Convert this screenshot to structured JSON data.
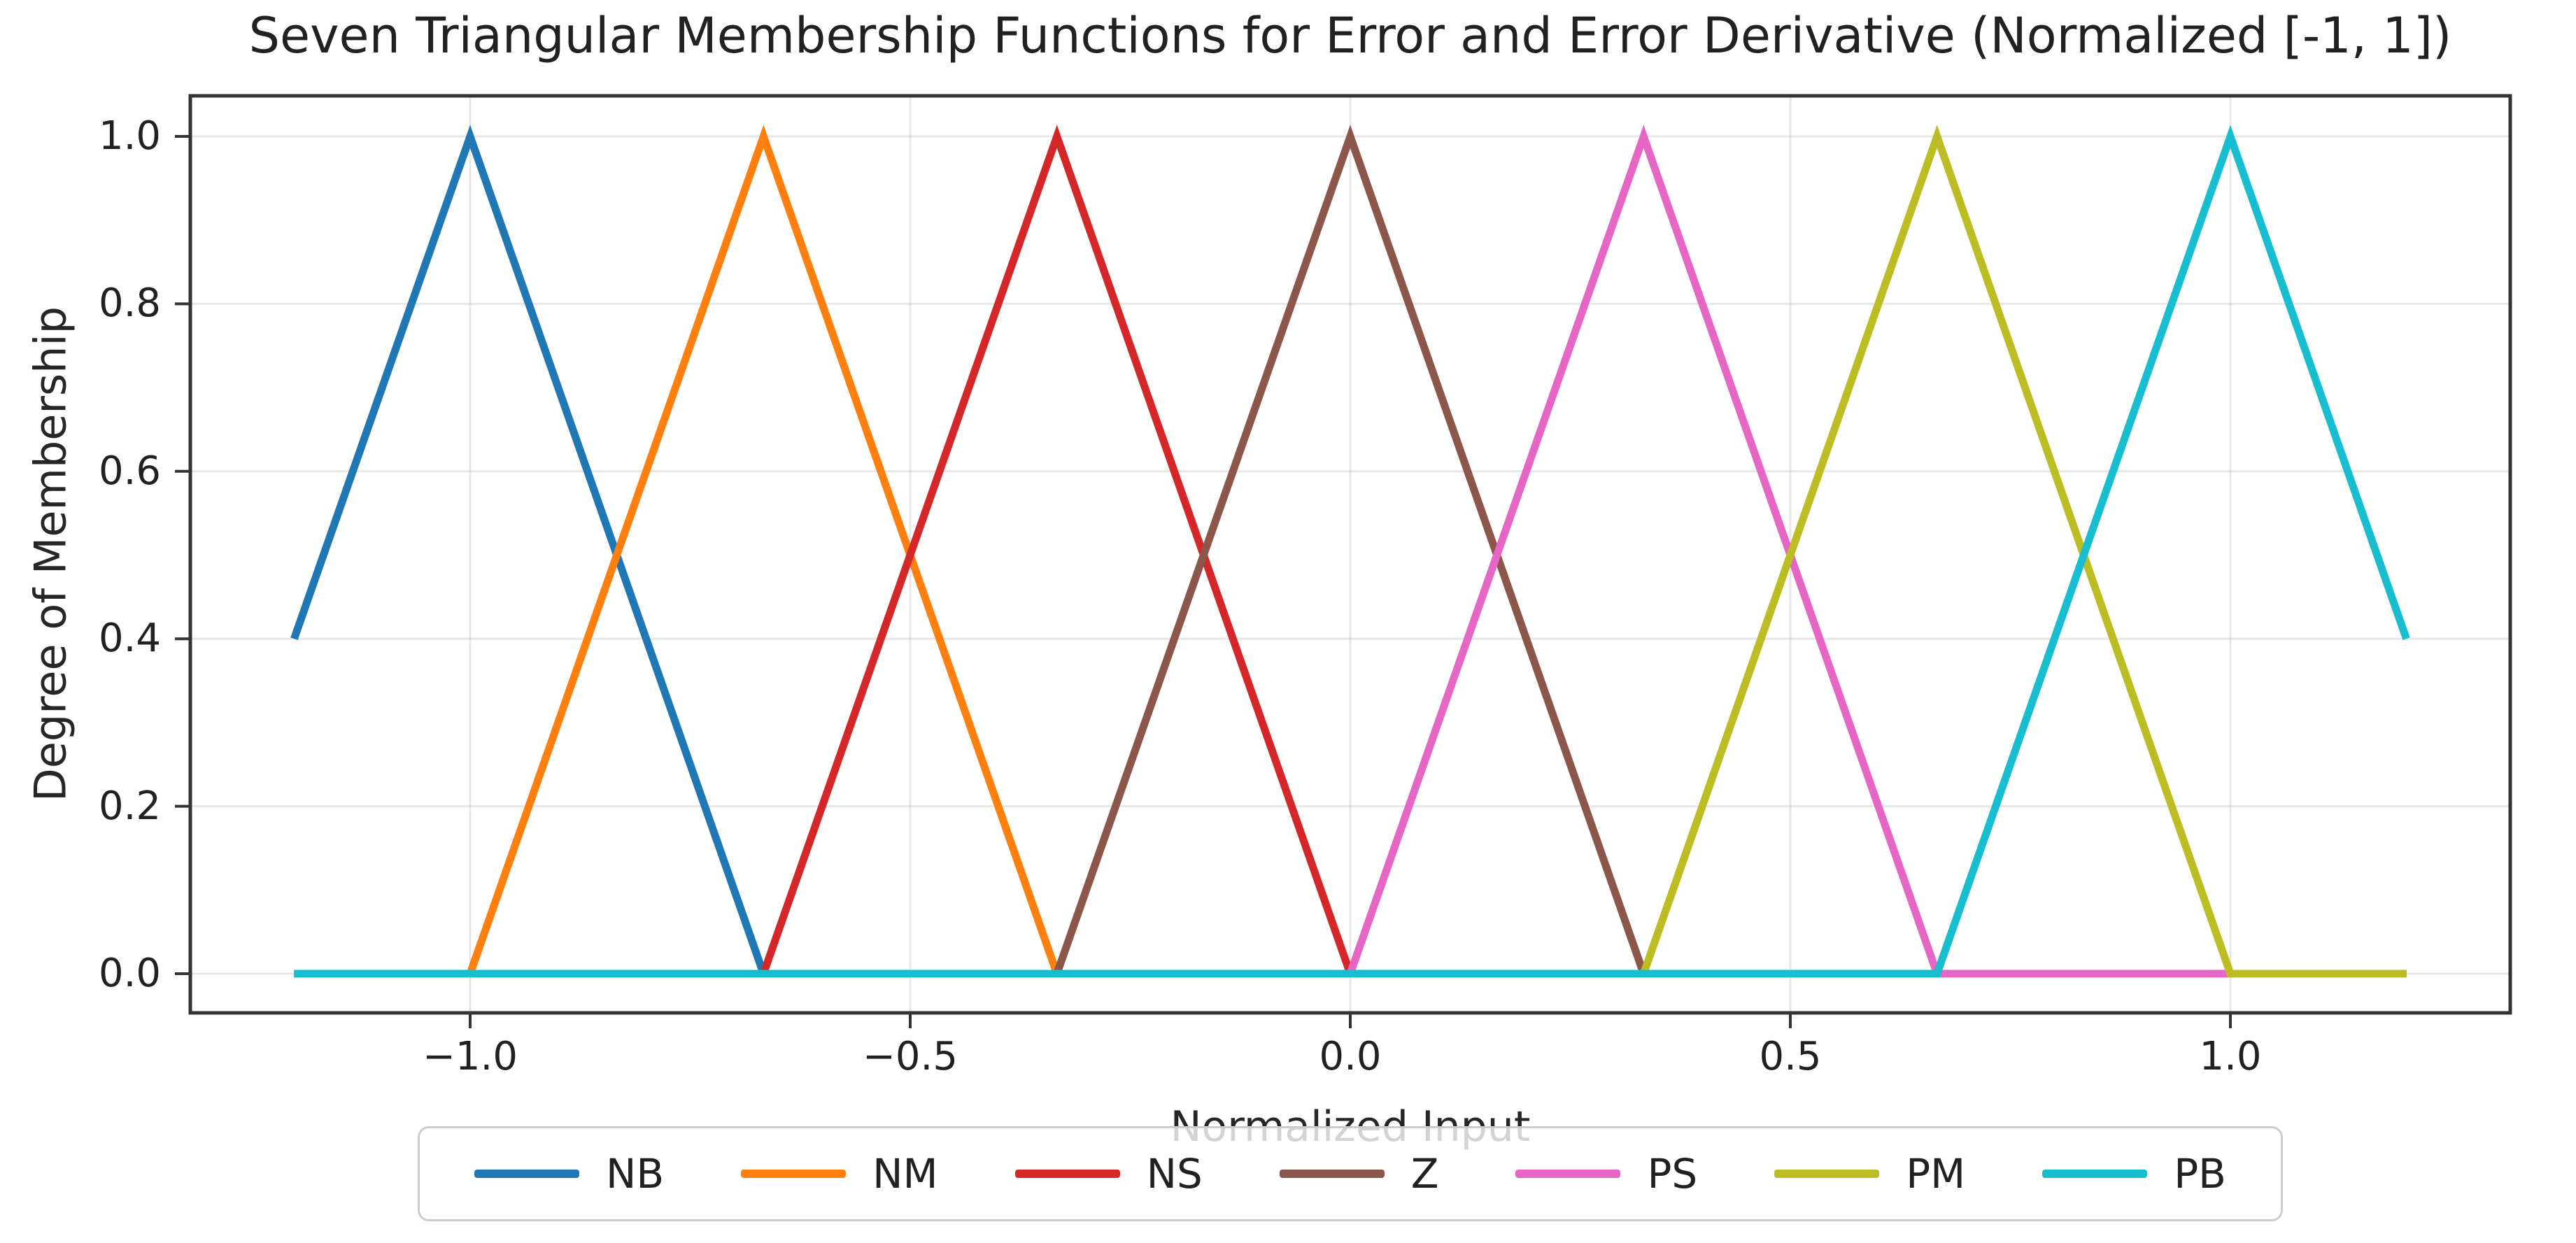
{
  "title": "Seven Triangular Membership Functions for Error and Error Derivative (Normalized [-1, 1])",
  "chart_data": {
    "type": "line",
    "title": "Seven Triangular Membership Functions for Error and Error Derivative (Normalized [-1, 1])",
    "xlabel": "Normalized Input",
    "ylabel": "Degree of Membership",
    "xlim": [
      -1.318,
      1.318
    ],
    "ylim": [
      -0.047,
      1.048
    ],
    "grid": true,
    "legend_position": "bottom-center",
    "axis_color": "#333333",
    "grid_color": "#b0b0b0",
    "xticks": {
      "values": [
        -1.0,
        -0.5,
        0.0,
        0.5,
        1.0
      ],
      "labels": [
        "−1.0",
        "−0.5",
        "0.0",
        "0.5",
        "1.0"
      ]
    },
    "yticks": {
      "values": [
        0.0,
        0.2,
        0.4,
        0.6,
        0.8,
        1.0
      ],
      "labels": [
        "0.0",
        "0.2",
        "0.4",
        "0.6",
        "0.8",
        "1.0"
      ]
    },
    "series": [
      {
        "name": "NB",
        "color": "#1f77b4",
        "points": [
          [
            -1.2,
            0.4
          ],
          [
            -1.0,
            1.0
          ],
          [
            -0.6667,
            0.0
          ],
          [
            1.2,
            0.0
          ]
        ]
      },
      {
        "name": "NM",
        "color": "#ff7f0e",
        "points": [
          [
            -1.2,
            0.0
          ],
          [
            -1.0,
            0.0
          ],
          [
            -0.6667,
            1.0
          ],
          [
            -0.3333,
            0.0
          ],
          [
            1.2,
            0.0
          ]
        ]
      },
      {
        "name": "NS",
        "color": "#d62728",
        "points": [
          [
            -1.2,
            0.0
          ],
          [
            -0.6667,
            0.0
          ],
          [
            -0.3333,
            1.0
          ],
          [
            0.0,
            0.0
          ],
          [
            1.2,
            0.0
          ]
        ]
      },
      {
        "name": "Z",
        "color": "#8c564b",
        "points": [
          [
            -1.2,
            0.0
          ],
          [
            -0.3333,
            0.0
          ],
          [
            0.0,
            1.0
          ],
          [
            0.3333,
            0.0
          ],
          [
            1.2,
            0.0
          ]
        ]
      },
      {
        "name": "PS",
        "color": "#e566c4",
        "points": [
          [
            -1.2,
            0.0
          ],
          [
            0.0,
            0.0
          ],
          [
            0.3333,
            1.0
          ],
          [
            0.6667,
            0.0
          ],
          [
            1.2,
            0.0
          ]
        ]
      },
      {
        "name": "PM",
        "color": "#bcbd22",
        "points": [
          [
            -1.2,
            0.0
          ],
          [
            0.3333,
            0.0
          ],
          [
            0.6667,
            1.0
          ],
          [
            1.0,
            0.0
          ],
          [
            1.2,
            0.0
          ]
        ]
      },
      {
        "name": "PB",
        "color": "#17becf",
        "points": [
          [
            -1.2,
            0.0
          ],
          [
            0.6667,
            0.0
          ],
          [
            1.0,
            1.0
          ],
          [
            1.2,
            0.4
          ]
        ]
      }
    ]
  }
}
